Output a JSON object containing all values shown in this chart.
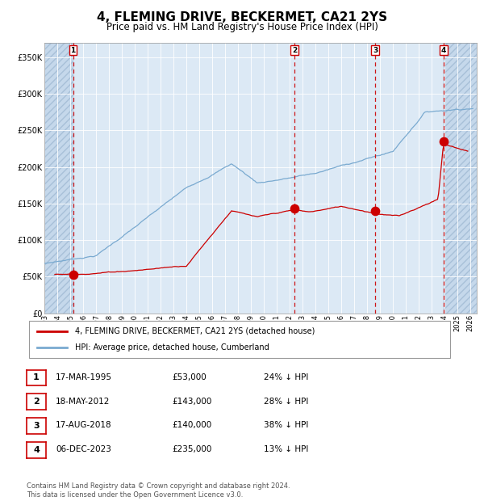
{
  "title": "4, FLEMING DRIVE, BECKERMET, CA21 2YS",
  "subtitle": "Price paid vs. HM Land Registry's House Price Index (HPI)",
  "title_fontsize": 11,
  "subtitle_fontsize": 8.5,
  "background_color": "#dce9f5",
  "ylim": [
    0,
    370000
  ],
  "yticks": [
    0,
    50000,
    100000,
    150000,
    200000,
    250000,
    300000,
    350000
  ],
  "ytick_labels": [
    "£0",
    "£50K",
    "£100K",
    "£150K",
    "£200K",
    "£250K",
    "£300K",
    "£350K"
  ],
  "xlim_start": 1993.0,
  "xlim_end": 2026.5,
  "sale_dates": [
    1995.21,
    2012.38,
    2018.63,
    2023.92
  ],
  "sale_prices": [
    53000,
    143000,
    140000,
    235000
  ],
  "sale_labels": [
    "1",
    "2",
    "3",
    "4"
  ],
  "sale_color": "#cc0000",
  "hpi_color": "#7aaad0",
  "red_line_color": "#cc0000",
  "legend_label_red": "4, FLEMING DRIVE, BECKERMET, CA21 2YS (detached house)",
  "legend_label_blue": "HPI: Average price, detached house, Cumberland",
  "table_entries": [
    {
      "num": "1",
      "date": "17-MAR-1995",
      "price": "£53,000",
      "hpi": "24% ↓ HPI"
    },
    {
      "num": "2",
      "date": "18-MAY-2012",
      "price": "£143,000",
      "hpi": "28% ↓ HPI"
    },
    {
      "num": "3",
      "date": "17-AUG-2018",
      "price": "£140,000",
      "hpi": "38% ↓ HPI"
    },
    {
      "num": "4",
      "date": "06-DEC-2023",
      "price": "£235,000",
      "hpi": "13% ↓ HPI"
    }
  ],
  "footer_text": "Contains HM Land Registry data © Crown copyright and database right 2024.\nThis data is licensed under the Open Government Licence v3.0.",
  "hatch_left_end": 1995.21,
  "hatch_right_start": 2023.92
}
